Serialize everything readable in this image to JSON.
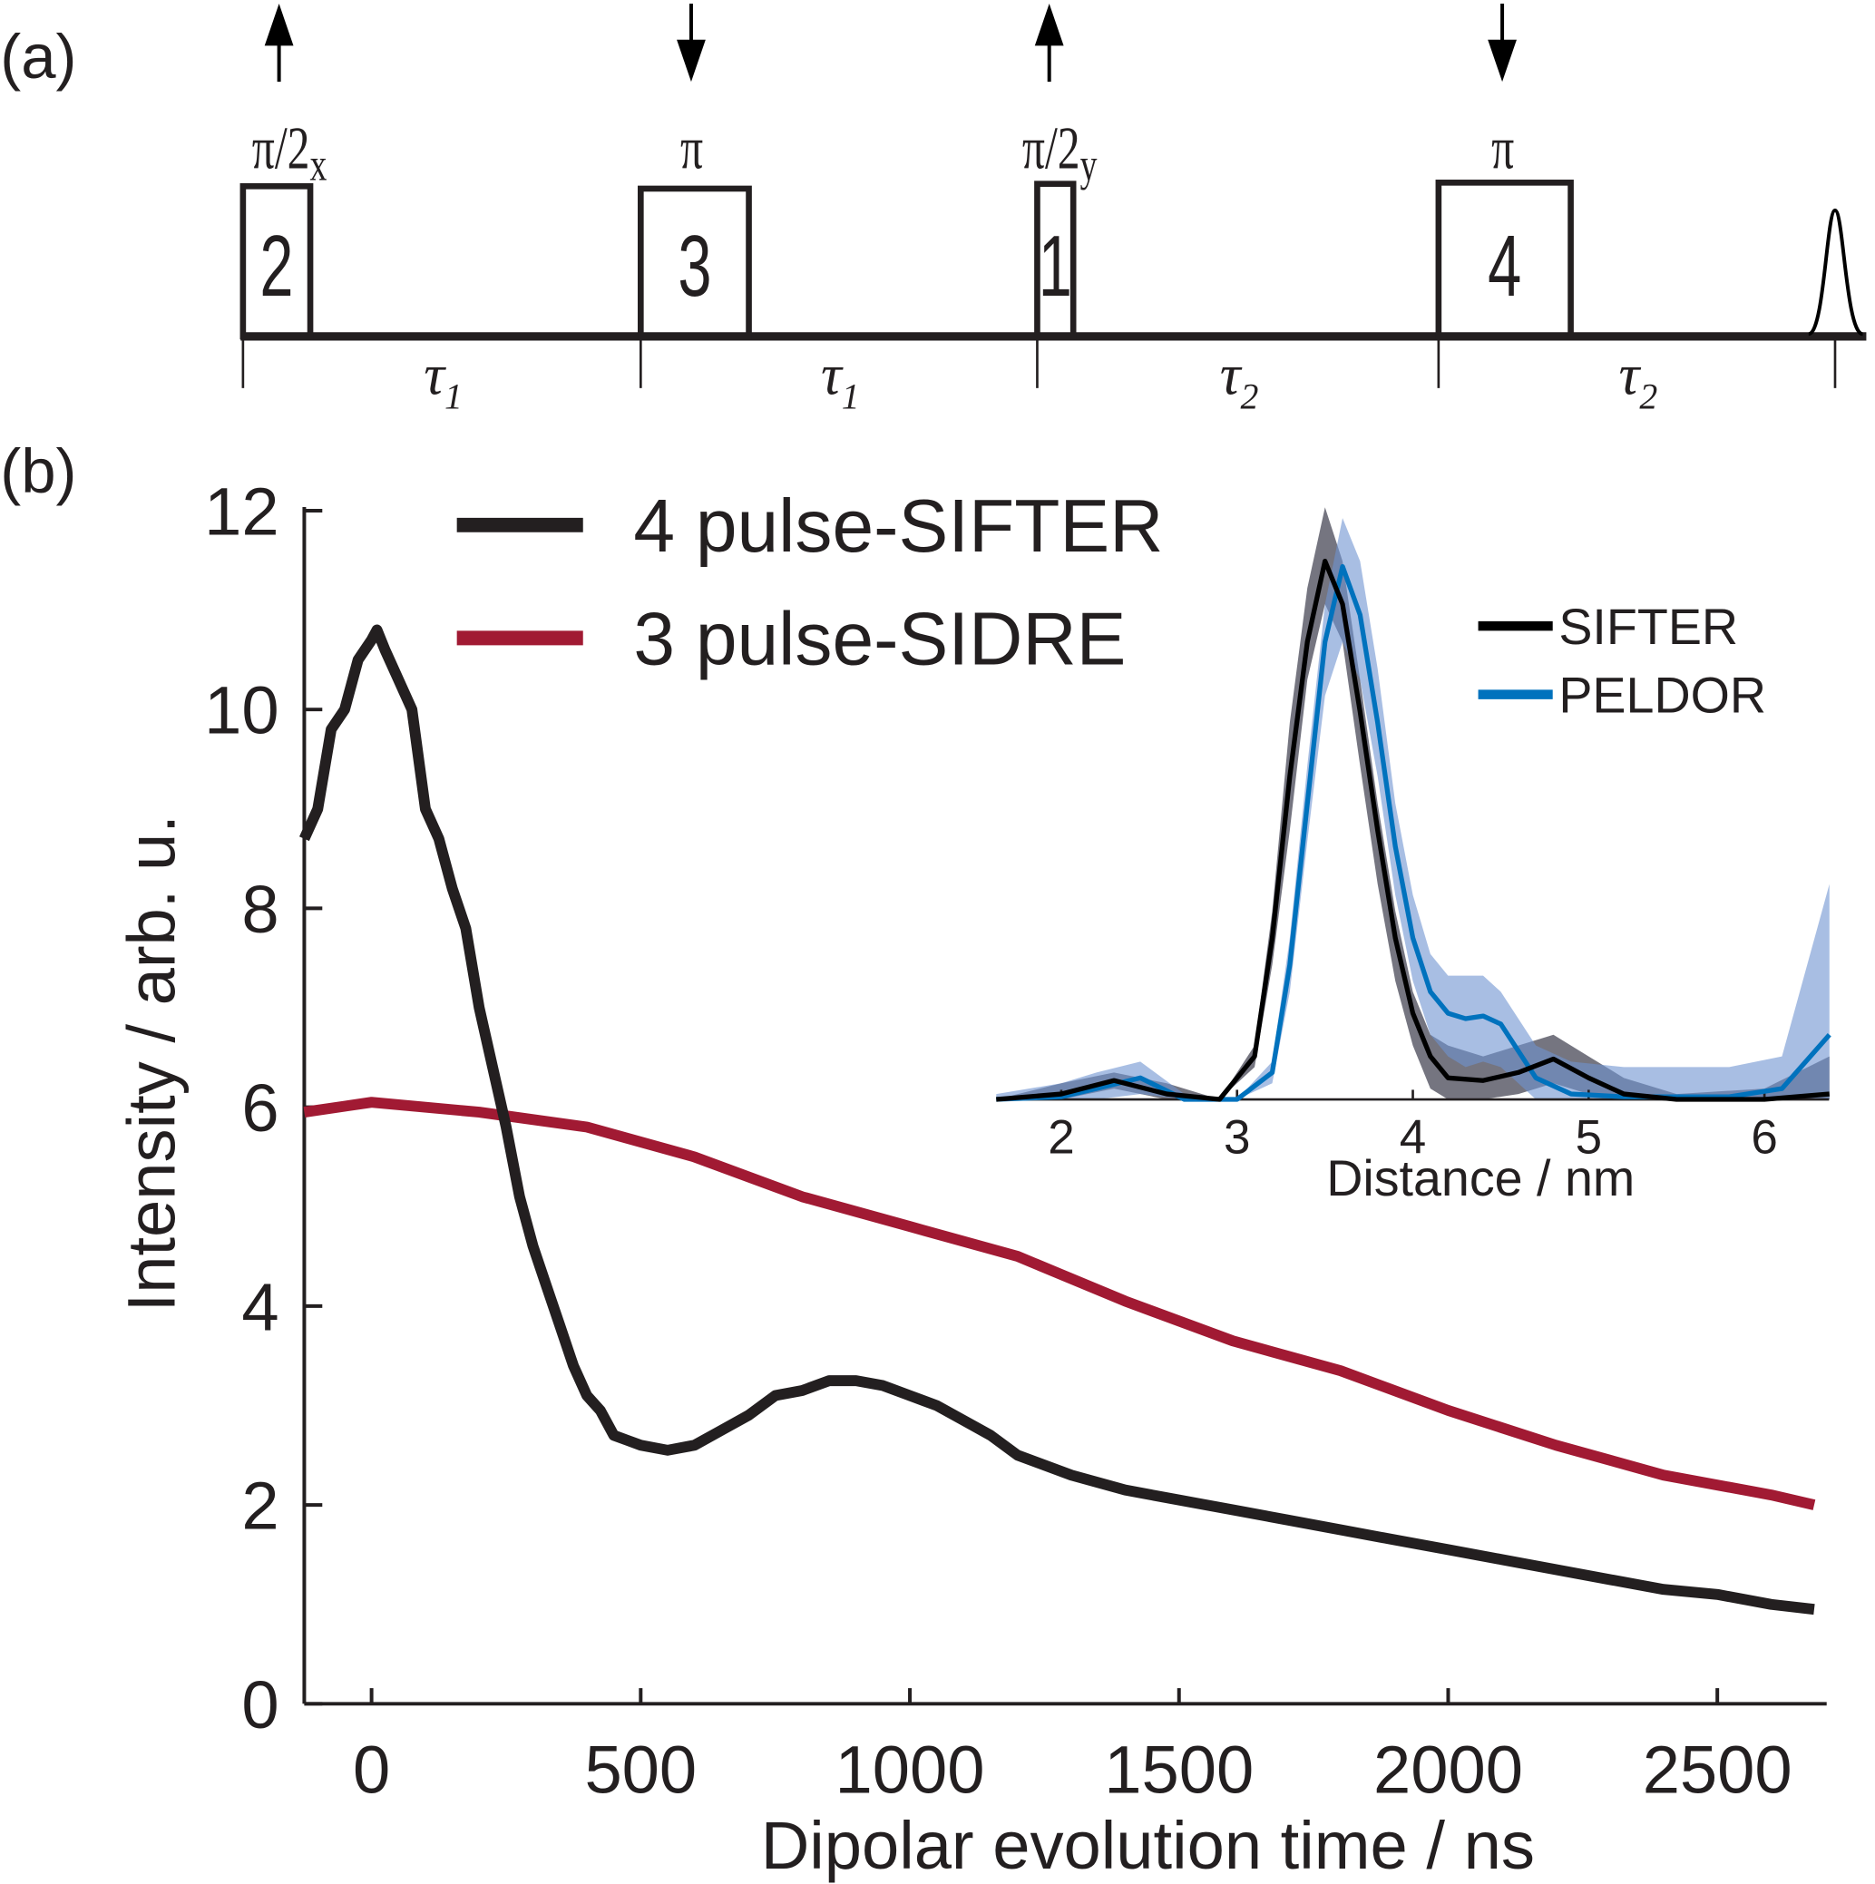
{
  "panel_labels": {
    "a": "(a)",
    "b": "(b)"
  },
  "pulse_sequence": {
    "pulses": [
      {
        "number": "2",
        "label": "π/2",
        "sub": "x",
        "spin": "up"
      },
      {
        "number": "3",
        "label": "π",
        "sub": "",
        "spin": "down"
      },
      {
        "number": "1",
        "label": "π/2",
        "sub": "y",
        "spin": "up"
      },
      {
        "number": "4",
        "label": "π",
        "sub": "",
        "spin": "down"
      }
    ],
    "intervals": [
      {
        "symbol": "τ",
        "sub": "1"
      },
      {
        "symbol": "τ",
        "sub": "1"
      },
      {
        "symbol": "τ",
        "sub": "2"
      },
      {
        "symbol": "τ",
        "sub": "2"
      }
    ]
  },
  "chart_data": [
    {
      "type": "line",
      "xlabel": "Dipolar evolution time / ns",
      "ylabel": "Intensity / arb. u.",
      "xlim": [
        -125,
        2700
      ],
      "ylim": [
        0,
        12
      ],
      "xticks": [
        0,
        500,
        1000,
        1500,
        2000,
        2500
      ],
      "yticks": [
        0,
        2,
        4,
        6,
        8,
        10,
        12
      ],
      "grid": false,
      "legend": "top-center",
      "series": [
        {
          "name": "4 pulse-SIFTER",
          "color": "#231f20",
          "x": [
            -125,
            -100,
            -75,
            -50,
            -25,
            0,
            10,
            25,
            50,
            75,
            100,
            125,
            150,
            175,
            200,
            225,
            250,
            275,
            300,
            325,
            350,
            375,
            400,
            425,
            450,
            475,
            500,
            550,
            600,
            650,
            700,
            750,
            800,
            850,
            900,
            950,
            1000,
            1050,
            1100,
            1150,
            1200,
            1300,
            1400,
            1500,
            1600,
            1700,
            1800,
            1900,
            2000,
            2100,
            2200,
            2300,
            2400,
            2500,
            2600,
            2680
          ],
          "y": [
            8.7,
            9.0,
            9.8,
            10.0,
            10.5,
            10.7,
            10.8,
            10.6,
            10.3,
            10.0,
            9.0,
            8.7,
            8.2,
            7.8,
            7.0,
            6.4,
            5.8,
            5.1,
            4.6,
            4.2,
            3.8,
            3.4,
            3.1,
            2.95,
            2.7,
            2.65,
            2.6,
            2.55,
            2.6,
            2.75,
            2.9,
            3.1,
            3.15,
            3.25,
            3.25,
            3.2,
            3.1,
            3.0,
            2.85,
            2.7,
            2.5,
            2.3,
            2.15,
            2.05,
            1.95,
            1.85,
            1.75,
            1.65,
            1.55,
            1.45,
            1.35,
            1.25,
            1.15,
            1.1,
            1.0,
            0.95
          ]
        },
        {
          "name": "3 pulse-SIDRE",
          "color": "#a11a33",
          "x": [
            -125,
            0,
            200,
            400,
            600,
            800,
            1000,
            1200,
            1400,
            1600,
            1800,
            2000,
            2200,
            2400,
            2600,
            2680
          ],
          "y": [
            5.95,
            6.05,
            5.95,
            5.8,
            5.5,
            5.1,
            4.8,
            4.5,
            4.05,
            3.65,
            3.35,
            2.95,
            2.6,
            2.3,
            2.1,
            2.0
          ]
        }
      ]
    },
    {
      "type": "line",
      "xlabel": "Distance / nm",
      "xlim": [
        1.63,
        6.37
      ],
      "xticks": [
        2,
        3,
        4,
        5,
        6
      ],
      "grid": false,
      "legend": "top-right",
      "series": [
        {
          "name": "SIFTER",
          "color": "#000000",
          "band_color": "#3a3a4a",
          "x": [
            1.63,
            2.0,
            2.3,
            2.6,
            2.9,
            3.1,
            3.2,
            3.3,
            3.4,
            3.5,
            3.6,
            3.7,
            3.8,
            3.9,
            4.0,
            4.1,
            4.2,
            4.4,
            4.6,
            4.8,
            5.0,
            5.2,
            5.5,
            6.0,
            6.37
          ],
          "y": [
            0,
            0.01,
            0.035,
            0.01,
            0,
            0.08,
            0.3,
            0.6,
            0.85,
            1.0,
            0.92,
            0.72,
            0.5,
            0.3,
            0.16,
            0.08,
            0.04,
            0.035,
            0.05,
            0.075,
            0.04,
            0.01,
            0,
            0,
            0.01
          ],
          "upper": [
            0,
            0.03,
            0.05,
            0.03,
            0,
            0.1,
            0.35,
            0.7,
            0.95,
            1.1,
            1.0,
            0.78,
            0.55,
            0.35,
            0.2,
            0.12,
            0.1,
            0.08,
            0.1,
            0.12,
            0.08,
            0.04,
            0.01,
            0.02,
            0.08
          ],
          "lower": [
            0,
            0,
            0.02,
            0,
            0,
            0.06,
            0.25,
            0.5,
            0.78,
            0.92,
            0.85,
            0.62,
            0.4,
            0.22,
            0.1,
            0.02,
            0,
            0,
            0.01,
            0.03,
            0.01,
            0,
            0,
            0,
            0
          ]
        },
        {
          "name": "PELDOR",
          "color": "#0072bd",
          "band_color": "#6e93d0",
          "x": [
            1.63,
            2.0,
            2.2,
            2.45,
            2.7,
            3.0,
            3.2,
            3.3,
            3.4,
            3.5,
            3.6,
            3.7,
            3.8,
            3.9,
            4.0,
            4.1,
            4.2,
            4.3,
            4.4,
            4.5,
            4.6,
            4.7,
            4.9,
            5.2,
            5.8,
            6.1,
            6.37
          ],
          "y": [
            0,
            0.005,
            0.02,
            0.04,
            0,
            0,
            0.05,
            0.25,
            0.55,
            0.85,
            0.99,
            0.9,
            0.7,
            0.47,
            0.3,
            0.2,
            0.16,
            0.15,
            0.155,
            0.14,
            0.09,
            0.04,
            0.01,
            0.005,
            0.005,
            0.02,
            0.12
          ],
          "upper": [
            0.01,
            0.03,
            0.05,
            0.07,
            0.01,
            0,
            0.07,
            0.3,
            0.62,
            0.92,
            1.08,
            1.0,
            0.8,
            0.55,
            0.38,
            0.27,
            0.23,
            0.23,
            0.23,
            0.2,
            0.15,
            0.1,
            0.07,
            0.06,
            0.06,
            0.08,
            0.4
          ],
          "lower": [
            0,
            0,
            0,
            0.01,
            0,
            0,
            0.03,
            0.2,
            0.48,
            0.75,
            0.85,
            0.78,
            0.6,
            0.38,
            0.22,
            0.12,
            0.08,
            0.06,
            0.07,
            0.06,
            0.03,
            0,
            0,
            0,
            0,
            0,
            0
          ]
        }
      ]
    }
  ]
}
